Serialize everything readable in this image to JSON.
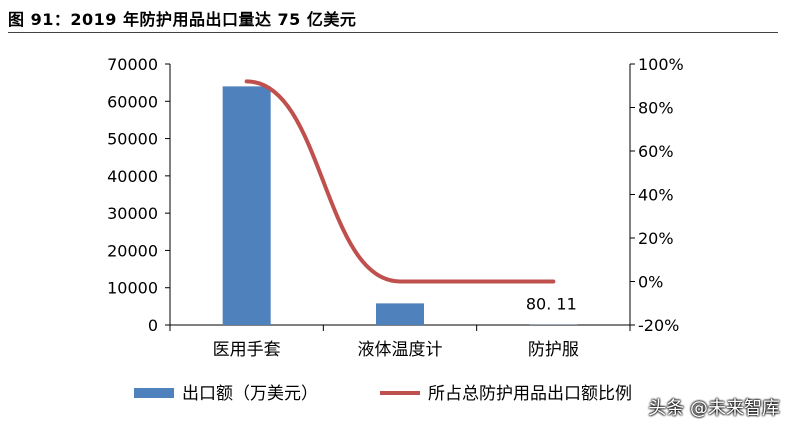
{
  "header": {
    "title": "图 91：2019 年防护用品出口量达 75 亿美元"
  },
  "watermark": "头条 @未来智库",
  "chart_data": {
    "type": "bar",
    "categories": [
      "医用手套",
      "液体温度计",
      "防护服"
    ],
    "series": [
      {
        "name": "出口额（万美元）",
        "type": "bar",
        "axis": "left",
        "color": "#4f81bd",
        "values": [
          64000,
          5800,
          80.11
        ]
      },
      {
        "name": "所占总防护用品出口额比例",
        "type": "line",
        "axis": "right",
        "color": "#c0504d",
        "values": [
          0.92,
          0.0,
          0.0
        ]
      }
    ],
    "data_labels": [
      {
        "category": "防护服",
        "text": "80. 11"
      }
    ],
    "y_left": {
      "min": 0,
      "max": 70000,
      "ticks": [
        0,
        10000,
        20000,
        30000,
        40000,
        50000,
        60000,
        70000
      ]
    },
    "y_right": {
      "min": -0.2,
      "max": 1.0,
      "ticks": [
        -0.2,
        0,
        0.2,
        0.4,
        0.6,
        0.8,
        1.0
      ],
      "tick_labels": [
        "-20%",
        "0%",
        "20%",
        "40%",
        "60%",
        "80%",
        "100%"
      ]
    },
    "legend_position": "bottom",
    "grid": false
  }
}
